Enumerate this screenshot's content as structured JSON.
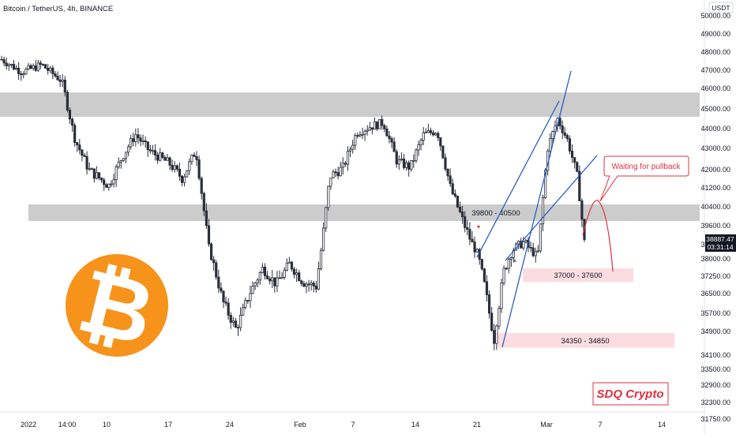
{
  "header": {
    "title": "Bitcoin / TetherUS, 4h, BINANCE",
    "currency": "USDT"
  },
  "price_tag": {
    "price": "38887.47",
    "countdown": "03:31:14"
  },
  "y_axis": {
    "ticks": [
      50000,
      49000,
      48000,
      47000,
      46000,
      45000,
      44000,
      43000,
      42000,
      41200,
      40400,
      39600,
      38800,
      38000,
      37250,
      36500,
      35700,
      34900,
      34100,
      33500,
      32900,
      32300,
      31750
    ],
    "tick_labels": [
      "50000.00",
      "49000.00",
      "48000.00",
      "47000.00",
      "46000.00",
      "45000.00",
      "44000.00",
      "43000.00",
      "42000.00",
      "41200.00",
      "40400.00",
      "39600.00",
      "38800.00",
      "38000.00",
      "37250.00",
      "36500.00",
      "35700.00",
      "34900.00",
      "34100.00",
      "33500.00",
      "32900.00",
      "32300.00",
      "31750.00"
    ]
  },
  "x_axis": {
    "tick_labels": [
      "2022",
      "14:00",
      "10",
      "17",
      "24",
      "Feb",
      "7",
      "14",
      "21",
      "Mar",
      "7",
      "14"
    ]
  },
  "zones": [
    {
      "label": "",
      "low": 44600,
      "high": 45800,
      "color": "#cccccc"
    },
    {
      "label": "39800 - 40500",
      "low": 39800,
      "high": 40500,
      "color": "#cccccc"
    },
    {
      "label": "37000 - 37600",
      "low": 37000,
      "high": 37600,
      "color": "#fbdde1"
    },
    {
      "label": "34350 - 34850",
      "low": 34350,
      "high": 34850,
      "color": "#fbdde1"
    }
  ],
  "annotation": {
    "callout": "Waiting for pullback",
    "watermark": "SDQ Crypto"
  },
  "logo": {
    "symbol": "₿",
    "color": "#f7931a"
  },
  "colors": {
    "candle": "#2a2e39",
    "channel": "#1c54c4",
    "callout": "#e03040",
    "up_marker": "#787b86",
    "down_marker": "#e03040"
  },
  "chart_data": {
    "type": "candlestick",
    "title": "Bitcoin / TetherUS, 4h, BINANCE",
    "unit": "USDT",
    "ylim": [
      31500,
      51500
    ],
    "close_path": [
      {
        "x": 0.0,
        "y": 47600
      },
      {
        "x": 0.03,
        "y": 46900
      },
      {
        "x": 0.06,
        "y": 47300
      },
      {
        "x": 0.09,
        "y": 46400
      },
      {
        "x": 0.11,
        "y": 43400
      },
      {
        "x": 0.13,
        "y": 42000
      },
      {
        "x": 0.16,
        "y": 41300
      },
      {
        "x": 0.18,
        "y": 42600
      },
      {
        "x": 0.2,
        "y": 43700
      },
      {
        "x": 0.22,
        "y": 42900
      },
      {
        "x": 0.25,
        "y": 42300
      },
      {
        "x": 0.27,
        "y": 41600
      },
      {
        "x": 0.29,
        "y": 42900
      },
      {
        "x": 0.31,
        "y": 38500
      },
      {
        "x": 0.33,
        "y": 36200
      },
      {
        "x": 0.35,
        "y": 35000
      },
      {
        "x": 0.37,
        "y": 36500
      },
      {
        "x": 0.39,
        "y": 37600
      },
      {
        "x": 0.41,
        "y": 36900
      },
      {
        "x": 0.43,
        "y": 37800
      },
      {
        "x": 0.45,
        "y": 37000
      },
      {
        "x": 0.47,
        "y": 36800
      },
      {
        "x": 0.49,
        "y": 41700
      },
      {
        "x": 0.51,
        "y": 42100
      },
      {
        "x": 0.53,
        "y": 43800
      },
      {
        "x": 0.55,
        "y": 44100
      },
      {
        "x": 0.57,
        "y": 44300
      },
      {
        "x": 0.59,
        "y": 42400
      },
      {
        "x": 0.61,
        "y": 42100
      },
      {
        "x": 0.63,
        "y": 43700
      },
      {
        "x": 0.65,
        "y": 43900
      },
      {
        "x": 0.67,
        "y": 41200
      },
      {
        "x": 0.69,
        "y": 39700
      },
      {
        "x": 0.71,
        "y": 38300
      },
      {
        "x": 0.72,
        "y": 37000
      },
      {
        "x": 0.735,
        "y": 34600
      },
      {
        "x": 0.75,
        "y": 37500
      },
      {
        "x": 0.765,
        "y": 38600
      },
      {
        "x": 0.78,
        "y": 38900
      },
      {
        "x": 0.8,
        "y": 38100
      },
      {
        "x": 0.815,
        "y": 43000
      },
      {
        "x": 0.83,
        "y": 44500
      },
      {
        "x": 0.845,
        "y": 43400
      },
      {
        "x": 0.86,
        "y": 41600
      },
      {
        "x": 0.87,
        "y": 38900
      }
    ]
  }
}
